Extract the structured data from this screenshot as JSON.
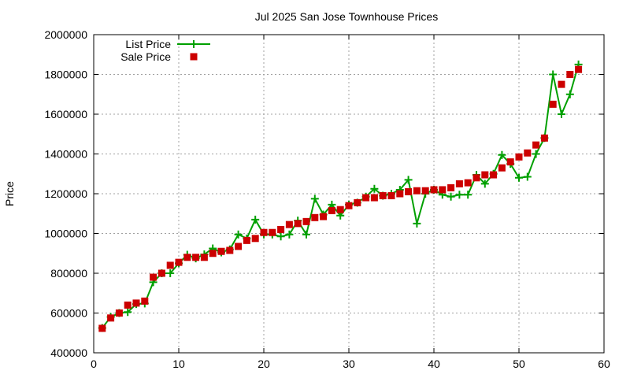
{
  "chart_data": {
    "type": "line",
    "title": "Jul 2025 San Jose Townhouse Prices",
    "xlabel": "",
    "ylabel": "Price",
    "xlim": [
      0,
      60
    ],
    "ylim": [
      400000,
      2000000
    ],
    "xticks": [
      0,
      10,
      20,
      30,
      40,
      50,
      60
    ],
    "yticks": [
      400000,
      600000,
      800000,
      1000000,
      1200000,
      1400000,
      1600000,
      1800000,
      2000000
    ],
    "grid": true,
    "legend_placement": "top-left",
    "x": [
      1,
      2,
      3,
      4,
      5,
      6,
      7,
      8,
      9,
      10,
      11,
      12,
      13,
      14,
      15,
      16,
      17,
      18,
      19,
      20,
      21,
      22,
      23,
      24,
      25,
      26,
      27,
      28,
      29,
      30,
      31,
      32,
      33,
      34,
      35,
      36,
      37,
      38,
      39,
      40,
      41,
      42,
      43,
      44,
      45,
      46,
      47,
      48,
      49,
      50,
      51,
      52,
      53,
      54,
      55,
      56,
      57
    ],
    "series": [
      {
        "name": "List Price",
        "style": "linespoints",
        "color": "#00a000",
        "marker": "plus",
        "values": [
          525000,
          580000,
          600000,
          605000,
          645000,
          648000,
          755000,
          800000,
          800000,
          850000,
          893000,
          875000,
          895000,
          925000,
          905000,
          920000,
          995000,
          975000,
          1070000,
          995000,
          995000,
          985000,
          995000,
          1065000,
          995000,
          1175000,
          1095000,
          1145000,
          1090000,
          1145000,
          1155000,
          1185000,
          1225000,
          1190000,
          1200000,
          1220000,
          1270000,
          1050000,
          1200000,
          1220000,
          1195000,
          1185000,
          1195000,
          1195000,
          1295000,
          1250000,
          1300000,
          1395000,
          1350000,
          1280000,
          1285000,
          1400000,
          1480000,
          1800000,
          1600000,
          1700000,
          1850000
        ]
      },
      {
        "name": "Sale Price",
        "style": "points",
        "color": "#cc0000",
        "marker": "square",
        "values": [
          523000,
          575000,
          600000,
          640000,
          650000,
          660000,
          780000,
          800000,
          840000,
          855000,
          880000,
          880000,
          880000,
          900000,
          910000,
          915000,
          935000,
          965000,
          975000,
          1005000,
          1005000,
          1020000,
          1045000,
          1050000,
          1060000,
          1080000,
          1085000,
          1115000,
          1120000,
          1140000,
          1155000,
          1180000,
          1180000,
          1190000,
          1190000,
          1200000,
          1210000,
          1215000,
          1215000,
          1220000,
          1220000,
          1230000,
          1250000,
          1255000,
          1280000,
          1295000,
          1295000,
          1330000,
          1360000,
          1385000,
          1405000,
          1445000,
          1480000,
          1650000,
          1750000,
          1800000,
          1825000
        ]
      }
    ]
  }
}
